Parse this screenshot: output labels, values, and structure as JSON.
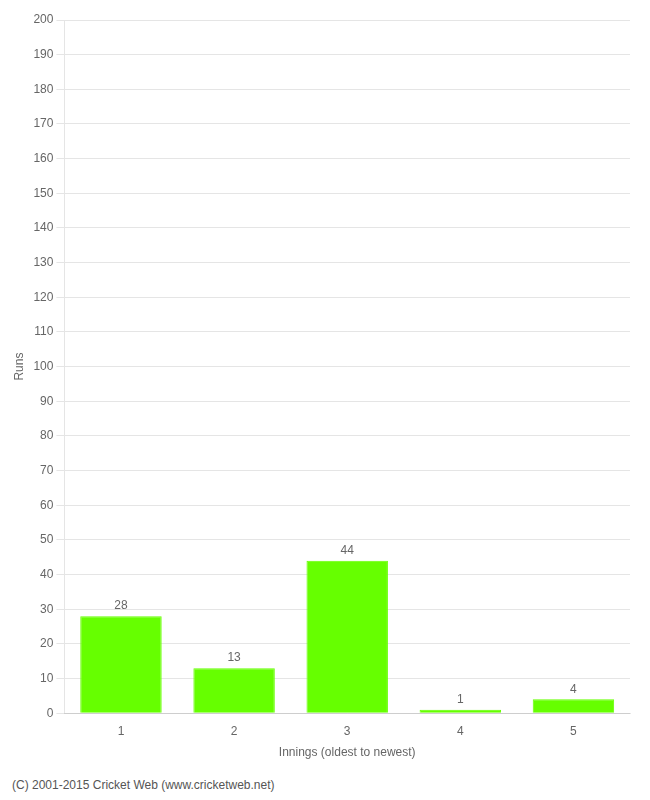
{
  "chart_data": {
    "type": "bar",
    "categories": [
      "1",
      "2",
      "3",
      "4",
      "5"
    ],
    "values": [
      28,
      13,
      44,
      1,
      4
    ],
    "color": "#66ff00",
    "xlabel": "Innings (oldest to newest)",
    "ylabel": "Runs",
    "ylim": [
      0,
      200
    ],
    "yticks": [
      0,
      10,
      20,
      30,
      40,
      50,
      60,
      70,
      80,
      90,
      100,
      110,
      120,
      130,
      140,
      150,
      160,
      170,
      180,
      190,
      200
    ],
    "grid": true,
    "data_labels": true,
    "annotation": "(C) 2001-2015 Cricket Web (www.cricketweb.net)"
  }
}
